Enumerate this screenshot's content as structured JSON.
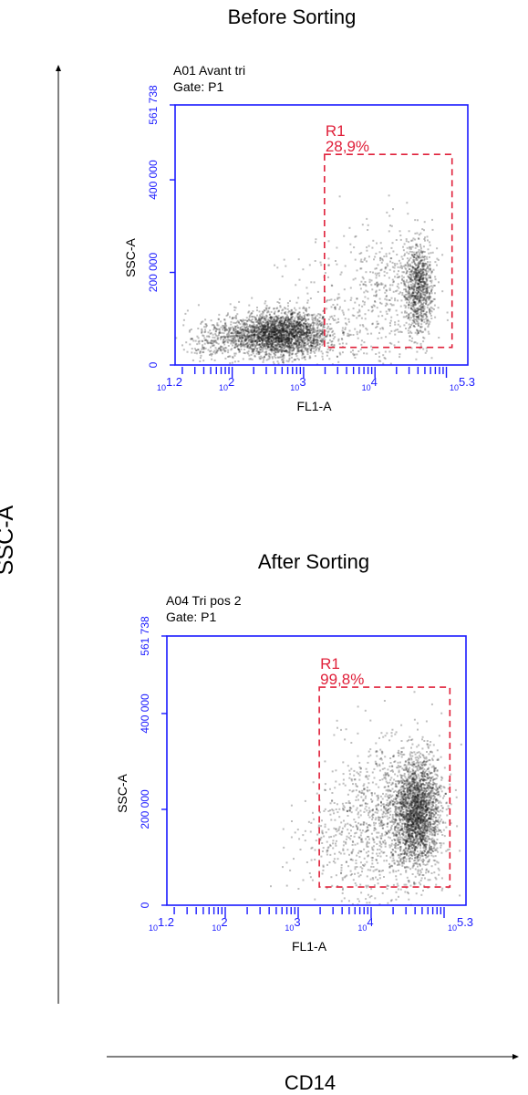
{
  "figure": {
    "outer_y_label": "SSC-A",
    "outer_x_label": "CD14"
  },
  "colors": {
    "axis": "#1a1aff",
    "gate": "#e0203a",
    "text": "#000000",
    "dot_dark": "#141414"
  },
  "chart_data": [
    {
      "type": "scatter",
      "title": "Before Sorting",
      "sample_name": "A01 Avant tri",
      "gate_info": "Gate: P1",
      "xlabel": "FL1-A",
      "ylabel": "SSC-A",
      "x_scale": "log",
      "xlim": [
        15.85,
        199526
      ],
      "ylim": [
        0,
        561738
      ],
      "x_tick_labels": [
        {
          "value": 15.85,
          "base": "10",
          "exp": "1.2"
        },
        {
          "value": 100,
          "base": "10",
          "exp": "2"
        },
        {
          "value": 1000,
          "base": "10",
          "exp": "3"
        },
        {
          "value": 10000,
          "base": "10",
          "exp": "4"
        },
        {
          "value": 199526,
          "base": "10",
          "exp": "5.3"
        }
      ],
      "y_ticks": [
        {
          "value": 0,
          "label": "0"
        },
        {
          "value": 200000,
          "label": "200 000"
        },
        {
          "value": 400000,
          "label": "400 000"
        },
        {
          "value": 561738,
          "label": "561 738"
        }
      ],
      "gate": {
        "name": "R1",
        "percent": "28,9%",
        "x_range": [
          1300,
          120000
        ],
        "y_range": [
          38000,
          455000
        ]
      },
      "populations": [
        {
          "center": [
            450,
            68000
          ],
          "spread_log": [
            0.36,
            0
          ],
          "spread_y": [
            24000,
            0
          ],
          "n": 2600
        },
        {
          "center": [
            60,
            55000
          ],
          "spread_log": [
            0.25,
            0
          ],
          "spread_y": [
            22000,
            0
          ],
          "n": 260
        },
        {
          "center": [
            40000,
            170000
          ],
          "spread_log": [
            0.1,
            0
          ],
          "spread_y": [
            48000,
            0
          ],
          "n": 850
        },
        {
          "center": [
            16000,
            170000
          ],
          "spread_log": [
            0.3,
            0
          ],
          "spread_y": [
            70000,
            0
          ],
          "n": 360
        },
        {
          "center": [
            3000,
            110000
          ],
          "spread_log": [
            0.45,
            0
          ],
          "spread_y": [
            90000,
            0
          ],
          "n": 220
        }
      ]
    },
    {
      "type": "scatter",
      "title": "After Sorting",
      "sample_name": "A04 Tri pos 2",
      "gate_info": "Gate: P1",
      "xlabel": "FL1-A",
      "ylabel": "SSC-A",
      "x_scale": "log",
      "xlim": [
        15.85,
        199526
      ],
      "ylim": [
        0,
        561738
      ],
      "x_tick_labels": [
        {
          "value": 15.85,
          "base": "10",
          "exp": "1.2"
        },
        {
          "value": 100,
          "base": "10",
          "exp": "2"
        },
        {
          "value": 1000,
          "base": "10",
          "exp": "3"
        },
        {
          "value": 10000,
          "base": "10",
          "exp": "4"
        },
        {
          "value": 199526,
          "base": "10",
          "exp": "5.3"
        }
      ],
      "y_ticks": [
        {
          "value": 0,
          "label": "0"
        },
        {
          "value": 200000,
          "label": "200 000"
        },
        {
          "value": 400000,
          "label": "400 000"
        },
        {
          "value": 561738,
          "label": "561 738"
        }
      ],
      "gate": {
        "name": "R1",
        "percent": "99,8%",
        "x_range": [
          1300,
          120000
        ],
        "y_range": [
          38000,
          455000
        ]
      },
      "populations": [
        {
          "center": [
            42000,
            195000
          ],
          "spread_log": [
            0.16,
            0
          ],
          "spread_y": [
            58000,
            0
          ],
          "n": 2300
        },
        {
          "center": [
            15000,
            185000
          ],
          "spread_log": [
            0.32,
            0
          ],
          "spread_y": [
            85000,
            0
          ],
          "n": 800
        },
        {
          "center": [
            4000,
            150000
          ],
          "spread_log": [
            0.3,
            0
          ],
          "spread_y": [
            70000,
            0
          ],
          "n": 230
        },
        {
          "center": [
            900,
            110000
          ],
          "spread_log": [
            0.2,
            0
          ],
          "spread_y": [
            40000,
            0
          ],
          "n": 14
        }
      ]
    }
  ]
}
